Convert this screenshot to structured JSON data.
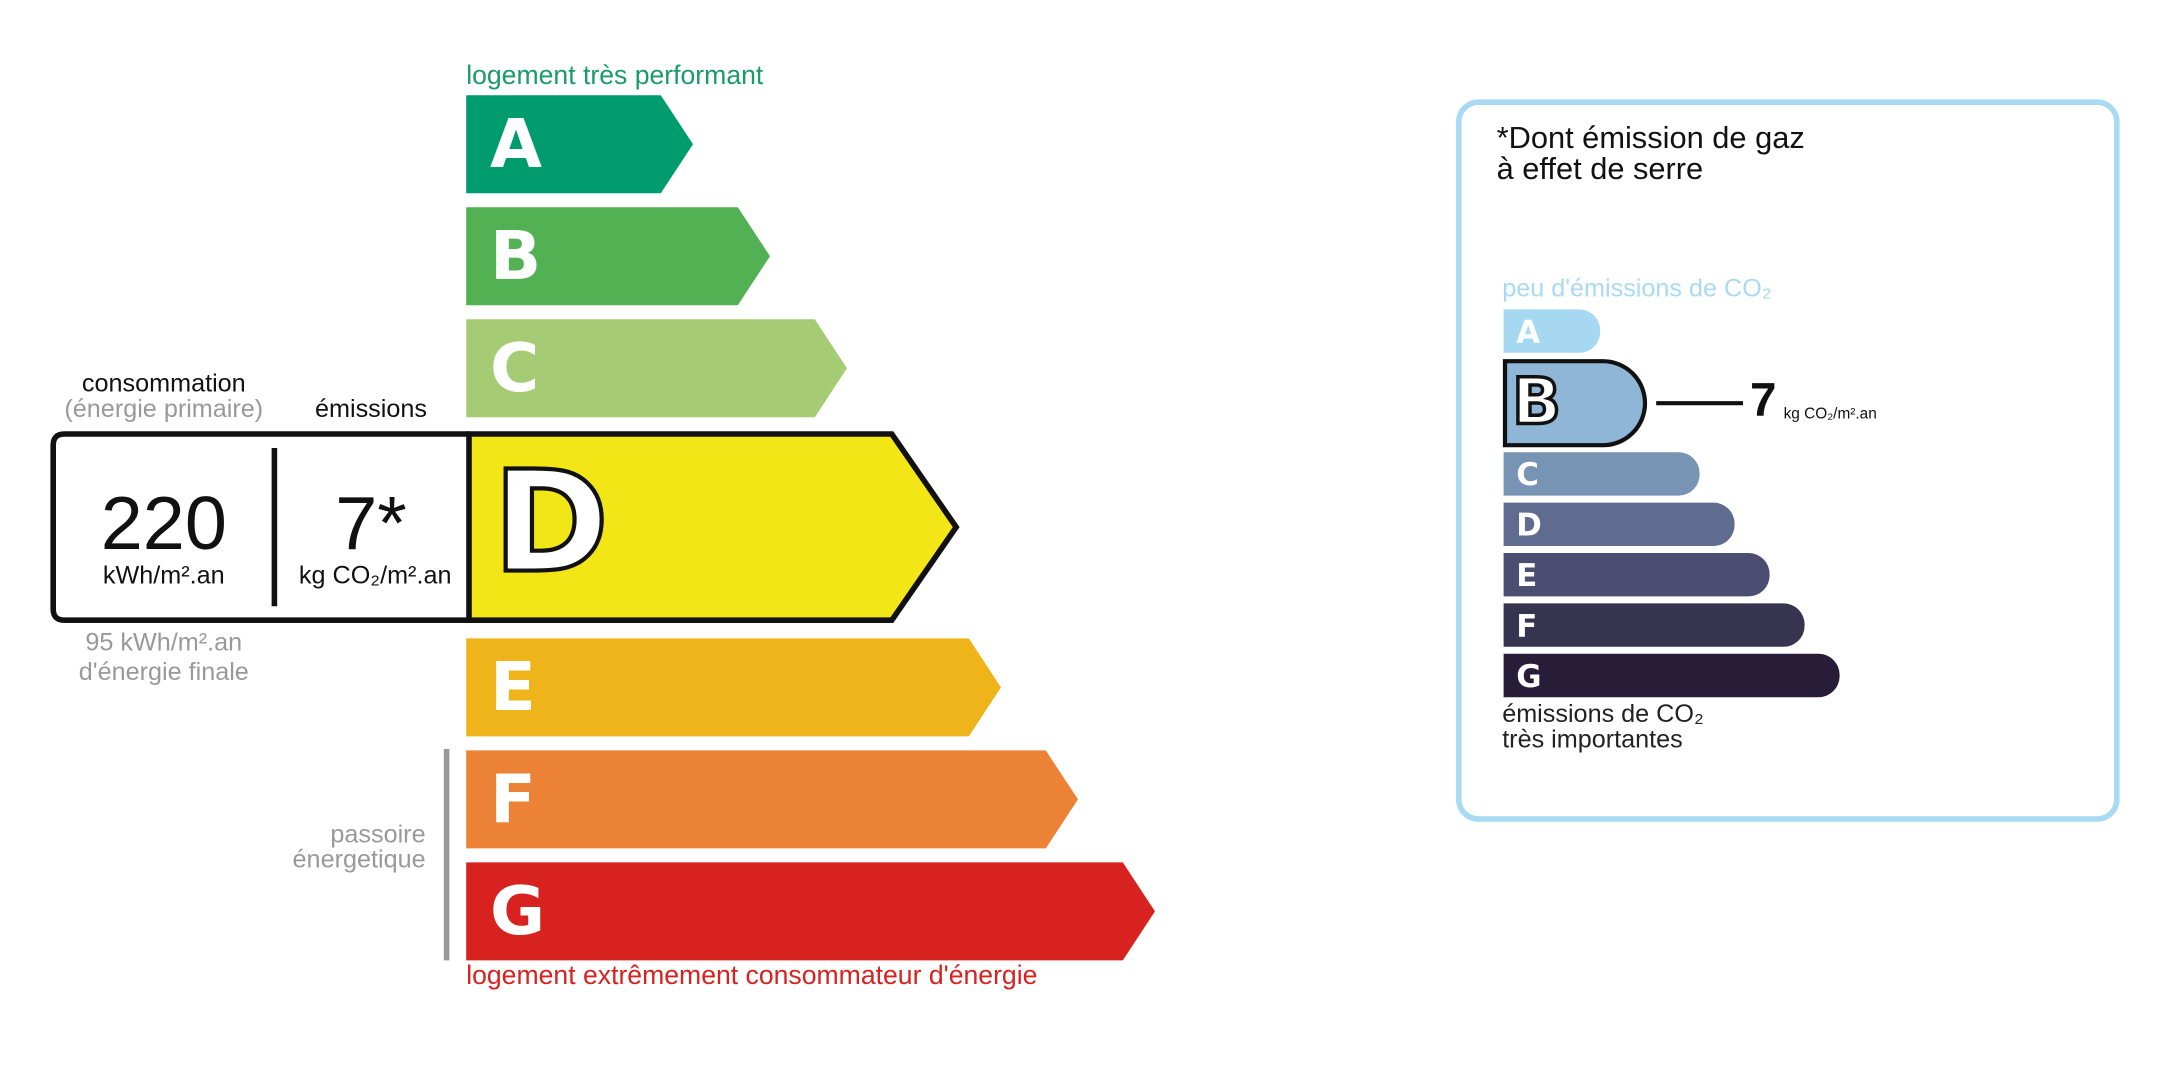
{
  "consumption_panel": {
    "consumption_label": "consommation",
    "primary_note": "(énergie primaire)",
    "emissions_label": "émissions",
    "consumption_value": 220,
    "consumption_unit": "kWh/m².an",
    "emissions_value": "7*",
    "emissions_unit": "kg CO₂/m².an",
    "final_energy": "95 kWh/m².an",
    "final_energy_note": "d'énergie finale"
  },
  "energy_scale": {
    "top_label": "logement très performant",
    "bottom_label": "logement extrêmement consommateur d'énergie",
    "passoire_label": [
      "passoire",
      "énergetique"
    ],
    "current": "D",
    "classes": [
      {
        "letter": "A",
        "color": "#009c6d"
      },
      {
        "letter": "B",
        "color": "#52b153"
      },
      {
        "letter": "C",
        "color": "#a5cc74"
      },
      {
        "letter": "D",
        "color": "#f2e617"
      },
      {
        "letter": "E",
        "color": "#efb41a"
      },
      {
        "letter": "F",
        "color": "#eb8235"
      },
      {
        "letter": "G",
        "color": "#d7221f"
      }
    ]
  },
  "ghg_panel": {
    "title": [
      "*Dont émission de gaz",
      "à effet de serre"
    ],
    "top_label": "peu d'émissions de CO₂",
    "bottom_label": [
      "émissions de CO₂",
      "très importantes"
    ],
    "current": "B",
    "value": 7,
    "unit": "kg CO₂/m².an",
    "classes": [
      {
        "letter": "A",
        "color": "#a7d8f2"
      },
      {
        "letter": "B",
        "color": "#8fb6d7"
      },
      {
        "letter": "C",
        "color": "#7894b4"
      },
      {
        "letter": "D",
        "color": "#5f6c8f"
      },
      {
        "letter": "E",
        "color": "#4b4e70"
      },
      {
        "letter": "F",
        "color": "#36344f"
      },
      {
        "letter": "G",
        "color": "#271d38"
      }
    ]
  }
}
